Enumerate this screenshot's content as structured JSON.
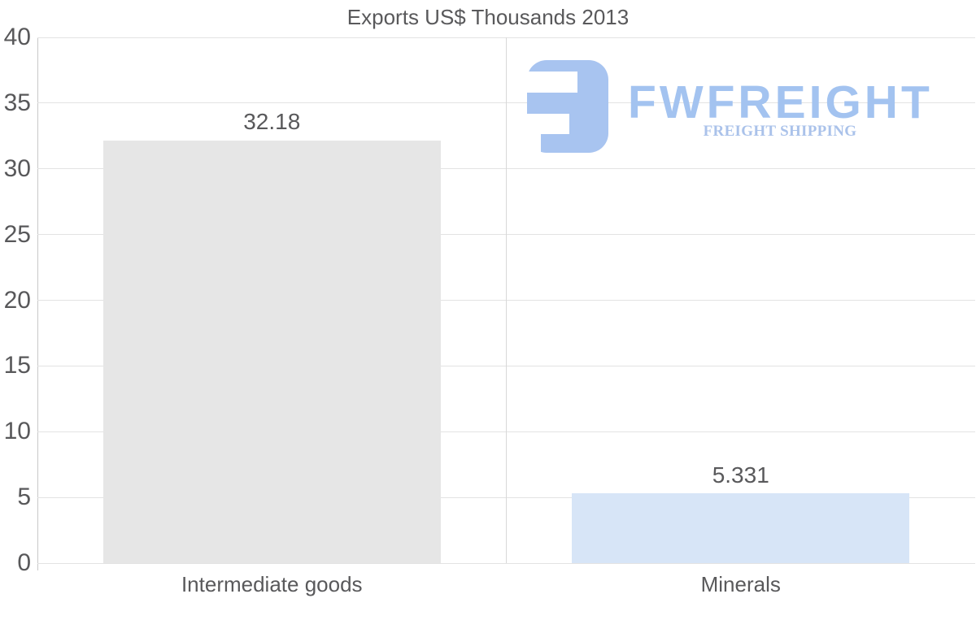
{
  "chart_data": {
    "type": "bar",
    "title": "Exports US$ Thousands 2013",
    "categories": [
      "Intermediate goods",
      "Minerals"
    ],
    "values": [
      32.18,
      5.331
    ],
    "value_labels": [
      "32.18",
      "5.331"
    ],
    "bar_colors": [
      "#e6e6e6",
      "#d7e5f7"
    ],
    "xlabel": "",
    "ylabel": "",
    "ylim": [
      0,
      40
    ],
    "yticks": [
      0,
      5,
      10,
      15,
      20,
      25,
      30,
      35,
      40
    ],
    "grid": "horizontal gridlines at every 5 units, vertical separator between categories",
    "legend_position": "none"
  },
  "watermark": {
    "name": "FWFREIGHT",
    "tagline": "FREIGHT SHIPPING",
    "mark_icon": "fw-monogram-icon",
    "mark_color": "#a8c4f0",
    "text_color": "#a3c3f0",
    "tagline_color": "#aac2ea"
  },
  "colors": {
    "background": "#ffffff",
    "text": "#59595b",
    "gridline": "#e3e3e3",
    "category_separator": "#d8d8d8",
    "axis_line": "#c8c8c8"
  }
}
